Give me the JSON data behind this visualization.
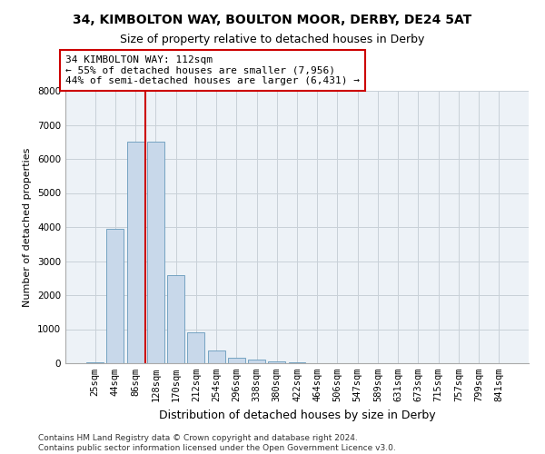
{
  "title1": "34, KIMBOLTON WAY, BOULTON MOOR, DERBY, DE24 5AT",
  "title2": "Size of property relative to detached houses in Derby",
  "xlabel": "Distribution of detached houses by size in Derby",
  "ylabel": "Number of detached properties",
  "bar_color": "#c8d8ea",
  "bar_edge_color": "#6699bb",
  "grid_color": "#c8d0d8",
  "bg_color": "#edf2f7",
  "vline_color": "#cc0000",
  "annotation_text": "34 KIMBOLTON WAY: 112sqm\n← 55% of detached houses are smaller (7,956)\n44% of semi-detached houses are larger (6,431) →",
  "annotation_box_color": "#cc0000",
  "footer": "Contains HM Land Registry data © Crown copyright and database right 2024.\nContains public sector information licensed under the Open Government Licence v3.0.",
  "bins": [
    "25sqm",
    "44sqm",
    "86sqm",
    "128sqm",
    "170sqm",
    "212sqm",
    "254sqm",
    "296sqm",
    "338sqm",
    "380sqm",
    "422sqm",
    "464sqm",
    "506sqm",
    "547sqm",
    "589sqm",
    "631sqm",
    "673sqm",
    "715sqm",
    "757sqm",
    "799sqm",
    "841sqm"
  ],
  "values": [
    40,
    3950,
    6500,
    6500,
    2600,
    900,
    380,
    150,
    100,
    60,
    40,
    0,
    0,
    0,
    0,
    0,
    0,
    0,
    0,
    0,
    0
  ],
  "vline_position": 2.5,
  "ylim": [
    0,
    8000
  ],
  "yticks": [
    0,
    1000,
    2000,
    3000,
    4000,
    5000,
    6000,
    7000,
    8000
  ],
  "title1_fontsize": 10,
  "title2_fontsize": 9,
  "xlabel_fontsize": 9,
  "ylabel_fontsize": 8,
  "tick_fontsize": 7.5,
  "annot_fontsize": 8,
  "footer_fontsize": 6.5
}
